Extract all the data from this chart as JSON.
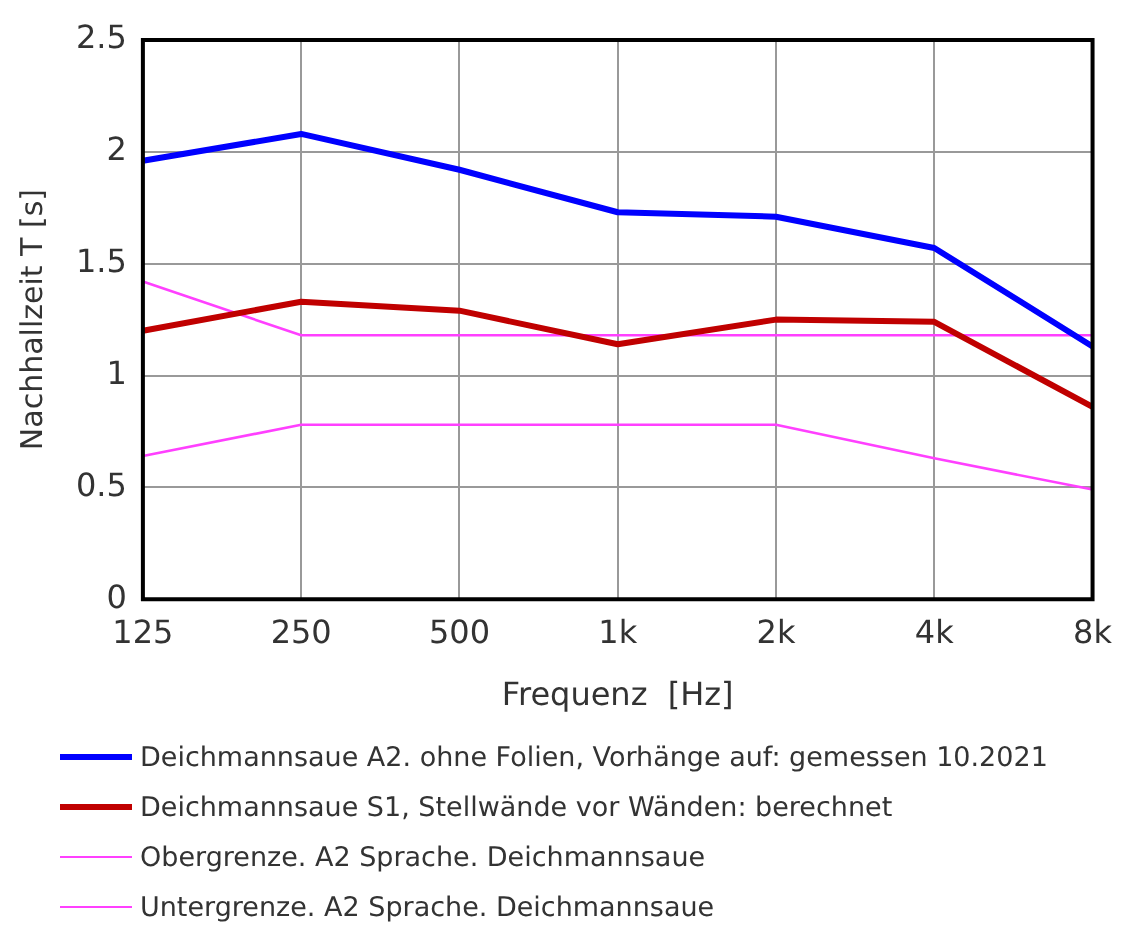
{
  "chart_data": {
    "type": "line",
    "xlabel": "Frequenz  [Hz]",
    "ylabel": "Nachhallzeit T [s]",
    "categories": [
      "125",
      "250",
      "500",
      "1k",
      "2k",
      "4k",
      "8k"
    ],
    "series": [
      {
        "name": "Deichmannsaue A2. ohne Folien, Vorhänge auf: gemessen 10.2021",
        "color": "#0000ff",
        "values": [
          1.96,
          2.08,
          1.92,
          1.73,
          1.71,
          1.57,
          1.13
        ]
      },
      {
        "name": "Deichmannsaue S1, Stellwände vor Wänden: berechnet",
        "color": "#c00000",
        "values": [
          1.2,
          1.33,
          1.29,
          1.14,
          1.25,
          1.24,
          0.86
        ]
      },
      {
        "name": "Obergrenze. A2 Sprache. Deichmannsaue",
        "color": "#ff40ff",
        "values": [
          1.42,
          1.18,
          1.18,
          1.18,
          1.18,
          1.18,
          1.18
        ]
      },
      {
        "name": "Untergrenze. A2 Sprache. Deichmannsaue",
        "color": "#ff40ff",
        "values": [
          0.64,
          0.78,
          0.78,
          0.78,
          0.78,
          0.63,
          0.49
        ]
      }
    ],
    "ylim": [
      0,
      2.5
    ],
    "yticks": [
      0,
      0.5,
      1,
      1.5,
      2,
      2.5
    ],
    "grid": true,
    "legend": "bottom",
    "marker": "none",
    "line_style": "solid"
  }
}
